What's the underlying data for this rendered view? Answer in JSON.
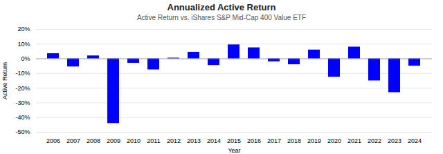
{
  "chart_data": {
    "type": "bar",
    "title": "Annualized Active Return",
    "subtitle": "Active Return vs. iShares S&P Mid-Cap 400 Value ETF",
    "xlabel": "Year",
    "ylabel": "Active Return",
    "categories": [
      "2006",
      "2007",
      "2008",
      "2009",
      "2010",
      "2011",
      "2012",
      "2013",
      "2014",
      "2015",
      "2016",
      "2017",
      "2018",
      "2019",
      "2020",
      "2021",
      "2022",
      "2023",
      "2024"
    ],
    "values": [
      3.5,
      -5.5,
      2.0,
      -44.0,
      -3.0,
      -7.5,
      0.5,
      4.5,
      -4.5,
      9.5,
      7.5,
      -2.0,
      -4.0,
      6.0,
      -12.5,
      8.0,
      -15.0,
      -23.0,
      -5.0
    ],
    "color": "#0000FF",
    "ylim": [
      -50,
      20
    ],
    "yticks": [
      {
        "value": 20,
        "label": "20%"
      },
      {
        "value": 10,
        "label": "10%"
      },
      {
        "value": 0,
        "label": "0%"
      },
      {
        "value": -10,
        "label": "-10%"
      },
      {
        "value": -20,
        "label": "-20%"
      },
      {
        "value": -30,
        "label": "-30%"
      },
      {
        "value": -40,
        "label": "-40%"
      },
      {
        "value": -50,
        "label": "-50%"
      }
    ],
    "grid": true
  }
}
